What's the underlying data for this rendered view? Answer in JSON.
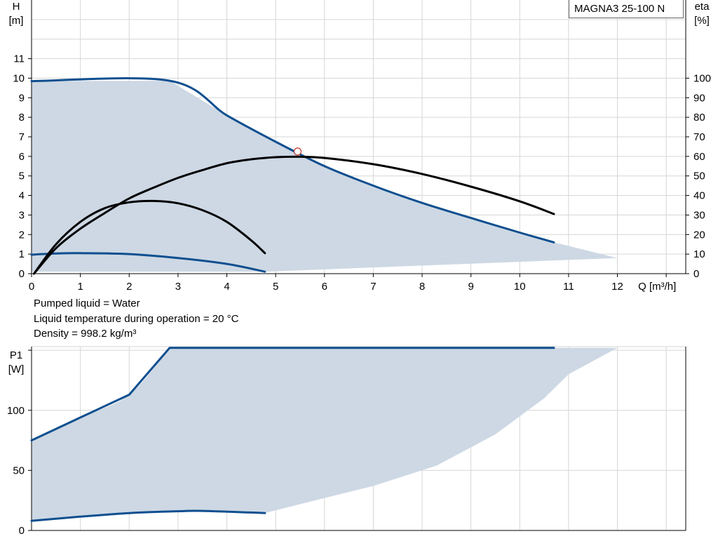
{
  "pump_name": "MAGNA3 25-100 N",
  "notes": {
    "liquid": "Pumped liquid = Water",
    "temperature": "Liquid temperature during operation = 20 °C",
    "density": "Density = 998.2 kg/m³"
  },
  "colors": {
    "area_fill": "#cdd8e4",
    "curve_blue": "#0f4f8f",
    "curve_black": "#000000",
    "grid": "#d6d6d6",
    "duty_marker": "#c0392b"
  },
  "chart_data": [
    {
      "type": "area",
      "id": "head",
      "xlabel": "Q [m³/h]",
      "ylabel_top": "H",
      "ylabel_unit": "[m]",
      "y2label_top": "eta",
      "y2label_unit": "[%]",
      "xlim": [
        0,
        13.4
      ],
      "ylim": [
        0,
        14
      ],
      "y2lim": [
        0,
        140
      ],
      "x_ticks": [
        0,
        1,
        2,
        3,
        4,
        5,
        6,
        7,
        8,
        9,
        10,
        11,
        12
      ],
      "y_ticks": [
        0,
        1,
        2,
        3,
        4,
        5,
        6,
        7,
        8,
        9,
        10,
        11
      ],
      "y2_ticks": [
        0,
        10,
        20,
        30,
        40,
        50,
        60,
        70,
        80,
        90,
        100
      ],
      "grid": true,
      "operating_area": {
        "upper": [
          [
            0,
            9.85
          ],
          [
            2.83,
            9.87
          ],
          [
            4,
            8.1
          ],
          [
            5,
            6.75
          ],
          [
            6,
            5.5
          ],
          [
            7,
            4.5
          ],
          [
            8,
            3.62
          ],
          [
            9,
            2.85
          ],
          [
            10,
            2.1
          ],
          [
            10.7,
            1.6
          ],
          [
            12,
            0.8
          ]
        ],
        "lower": [
          [
            12,
            0.8
          ],
          [
            4.78,
            0.1
          ],
          [
            0,
            0.1
          ]
        ]
      },
      "series": [
        {
          "name": "",
          "axis": "H",
          "color": "#0f4f8f",
          "points": [
            [
              0,
              9.85
            ],
            [
              2.83,
              9.87
            ],
            [
              4,
              8.1
            ],
            [
              5,
              6.75
            ],
            [
              6,
              5.5
            ],
            [
              7,
              4.5
            ],
            [
              8,
              3.62
            ],
            [
              9,
              2.85
            ],
            [
              10,
              2.1
            ],
            [
              10.7,
              1.6
            ]
          ]
        },
        {
          "name": "",
          "axis": "H",
          "color": "#0f4f8f",
          "points": [
            [
              0,
              0.97
            ],
            [
              0.5,
              1.03
            ],
            [
              1,
              1.05
            ],
            [
              2,
              1.0
            ],
            [
              3,
              0.8
            ],
            [
              4,
              0.5
            ],
            [
              4.78,
              0.1
            ]
          ]
        },
        {
          "name": "",
          "axis": "eta",
          "color": "#000000",
          "points": [
            [
              0.05,
              0
            ],
            [
              0.5,
              13
            ],
            [
              1,
              23
            ],
            [
              1.5,
              31
            ],
            [
              2,
              38.5
            ],
            [
              2.5,
              44
            ],
            [
              3,
              49
            ],
            [
              3.5,
              53
            ],
            [
              4,
              56.5
            ],
            [
              4.5,
              58.5
            ],
            [
              5,
              59.6
            ],
            [
              5.5,
              59.8
            ],
            [
              6,
              59.2
            ],
            [
              7,
              56
            ],
            [
              8,
              51
            ],
            [
              9,
              44.5
            ],
            [
              10,
              37
            ],
            [
              10.7,
              30.5
            ]
          ]
        },
        {
          "name": "",
          "axis": "eta",
          "color": "#000000",
          "points": [
            [
              0.05,
              0
            ],
            [
              0.5,
              15
            ],
            [
              1,
              26.5
            ],
            [
              1.5,
              33.5
            ],
            [
              2,
              36.5
            ],
            [
              2.5,
              37.2
            ],
            [
              3,
              36
            ],
            [
              3.5,
              32.5
            ],
            [
              4,
              26.5
            ],
            [
              4.5,
              17
            ],
            [
              4.78,
              10.5
            ]
          ]
        }
      ],
      "duty_point": {
        "q": 5.45,
        "h": 6.25
      }
    },
    {
      "type": "area",
      "id": "power",
      "ylabel_top": "P1",
      "ylabel_unit": "[W]",
      "xlim": [
        0,
        13.4
      ],
      "ylim": [
        0,
        153
      ],
      "y_ticks": [
        0,
        50,
        100,
        150
      ],
      "y_tick_labels": [
        "0",
        "50",
        "100",
        ""
      ],
      "grid": true,
      "operating_area": {
        "upper": [
          [
            0,
            75
          ],
          [
            1,
            94
          ],
          [
            2,
            113
          ],
          [
            2.83,
            152
          ],
          [
            12,
            152
          ]
        ],
        "lower": [
          [
            12,
            152
          ],
          [
            11,
            130
          ],
          [
            10.5,
            110
          ],
          [
            9.5,
            80
          ],
          [
            8.3,
            54
          ],
          [
            7,
            37
          ],
          [
            6,
            27
          ],
          [
            4.78,
            14.5
          ],
          [
            3.5,
            16
          ],
          [
            2,
            14.5
          ],
          [
            0,
            8
          ]
        ]
      },
      "series": [
        {
          "name": "",
          "color": "#0f4f8f",
          "points": [
            [
              0,
              75
            ],
            [
              1,
              94
            ],
            [
              2,
              113
            ],
            [
              2.83,
              152
            ],
            [
              10.7,
              152
            ]
          ]
        },
        {
          "name": "",
          "color": "#0f4f8f",
          "points": [
            [
              0,
              8
            ],
            [
              1,
              11.5
            ],
            [
              2,
              14.5
            ],
            [
              3,
              16
            ],
            [
              3.5,
              16.3
            ],
            [
              4.78,
              14.5
            ]
          ]
        }
      ]
    }
  ]
}
